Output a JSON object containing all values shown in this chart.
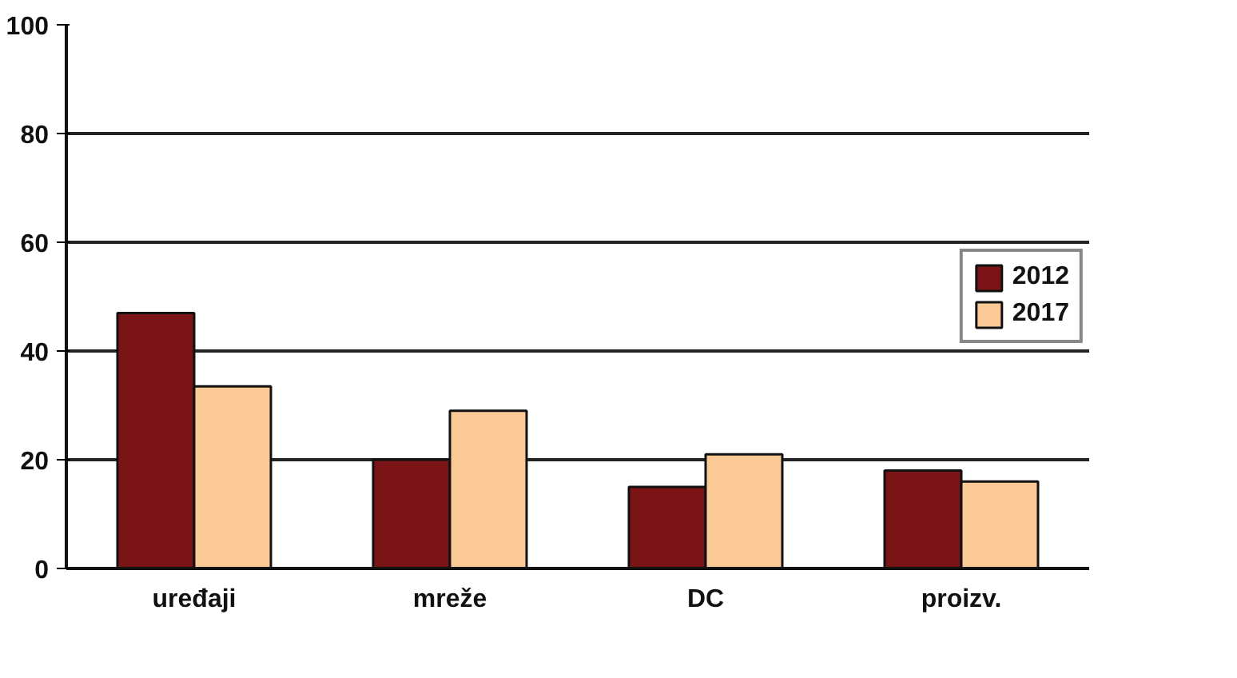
{
  "chart_data": {
    "type": "bar",
    "categories": [
      "uređaji",
      "mreže",
      "DC",
      "proizv."
    ],
    "series": [
      {
        "name": "2012",
        "color": "#7b1416",
        "values": [
          47,
          20,
          15,
          18
        ]
      },
      {
        "name": "2017",
        "color": "#fbc995",
        "values": [
          33.5,
          29,
          21,
          16
        ]
      }
    ],
    "ylim": [
      0,
      100
    ],
    "yticks": [
      0,
      20,
      40,
      60,
      80,
      100
    ],
    "grid": "y",
    "legend": "right"
  }
}
